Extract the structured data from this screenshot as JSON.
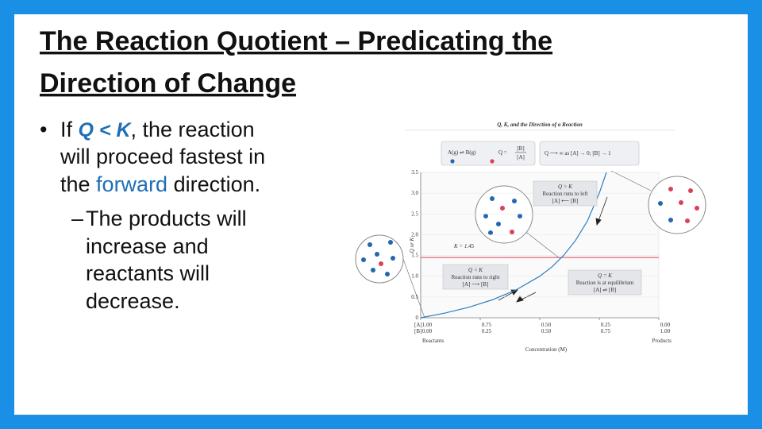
{
  "slide": {
    "title": [
      "The Reaction Quotient – Predicating the",
      "Direction of Change"
    ],
    "bullet": {
      "marker": "•",
      "lines": [
        [
          "If ",
          "Q < K",
          ", the reaction"
        ],
        [
          "will proceed fastest in"
        ],
        [
          "the ",
          "forward",
          " direction."
        ]
      ]
    },
    "sub_bullet": {
      "marker": "–",
      "lines": [
        "The products will",
        "increase and",
        "reactants will",
        "decrease."
      ]
    }
  },
  "figure": {
    "type": "line",
    "title": "Q, K, and the Direction of a Reaction",
    "reaction": "A(g) ⇌ B(g)",
    "q_def": [
      "Q =",
      "[B]",
      "[A]"
    ],
    "limit": "Q ⟶ ∞ as [A] → 0; [B] → 1",
    "y_label": "Q or K",
    "x_label": "Concentration (M)",
    "ylim": [
      0,
      3.5
    ],
    "yticks": [
      0,
      0.5,
      {
        "value": 1,
        "label": "1.0"
      },
      1.5,
      {
        "value": 2,
        "label": "2.0"
      },
      2.5,
      {
        "value": 3,
        "label": "3.0"
      },
      3.5
    ],
    "xlim": [
      0,
      1
    ],
    "xticks": [
      {
        "value": 0,
        "label": "0.00"
      },
      0.25,
      {
        "value": 0.5,
        "label": "0.50"
      },
      0.75,
      {
        "value": 1,
        "label": "1.00"
      }
    ],
    "row_a": "[A]",
    "row_b": "[B]",
    "a_labels": [
      "1.00",
      "0.75",
      "0.50",
      "0.25",
      "0.00"
    ],
    "end_labels": [
      "Reactants",
      "Products"
    ],
    "curve": {
      "color": "#2b7fc4",
      "b": [
        0,
        0.1,
        0.2,
        0.3,
        0.4,
        0.5,
        0.55,
        0.6,
        0.65,
        0.7,
        0.75,
        0.78
      ],
      "q": [
        0,
        0.11,
        0.25,
        0.43,
        0.67,
        1.0,
        1.22,
        1.5,
        1.86,
        2.33,
        3.0,
        3.5
      ]
    },
    "k_value": 1.45,
    "k_color": "#d9415a",
    "k_label": "K = 1.45",
    "boxes": [
      [
        "Q > K",
        "Reaction runs to left",
        "[A] ⟵ [B]"
      ],
      [
        "Q < K",
        "Reaction runs to right",
        "[A] ⟶ [B]"
      ],
      [
        "Q = K",
        "Reaction is at equilibrium",
        "[A] ⇌ [B]"
      ]
    ]
  }
}
